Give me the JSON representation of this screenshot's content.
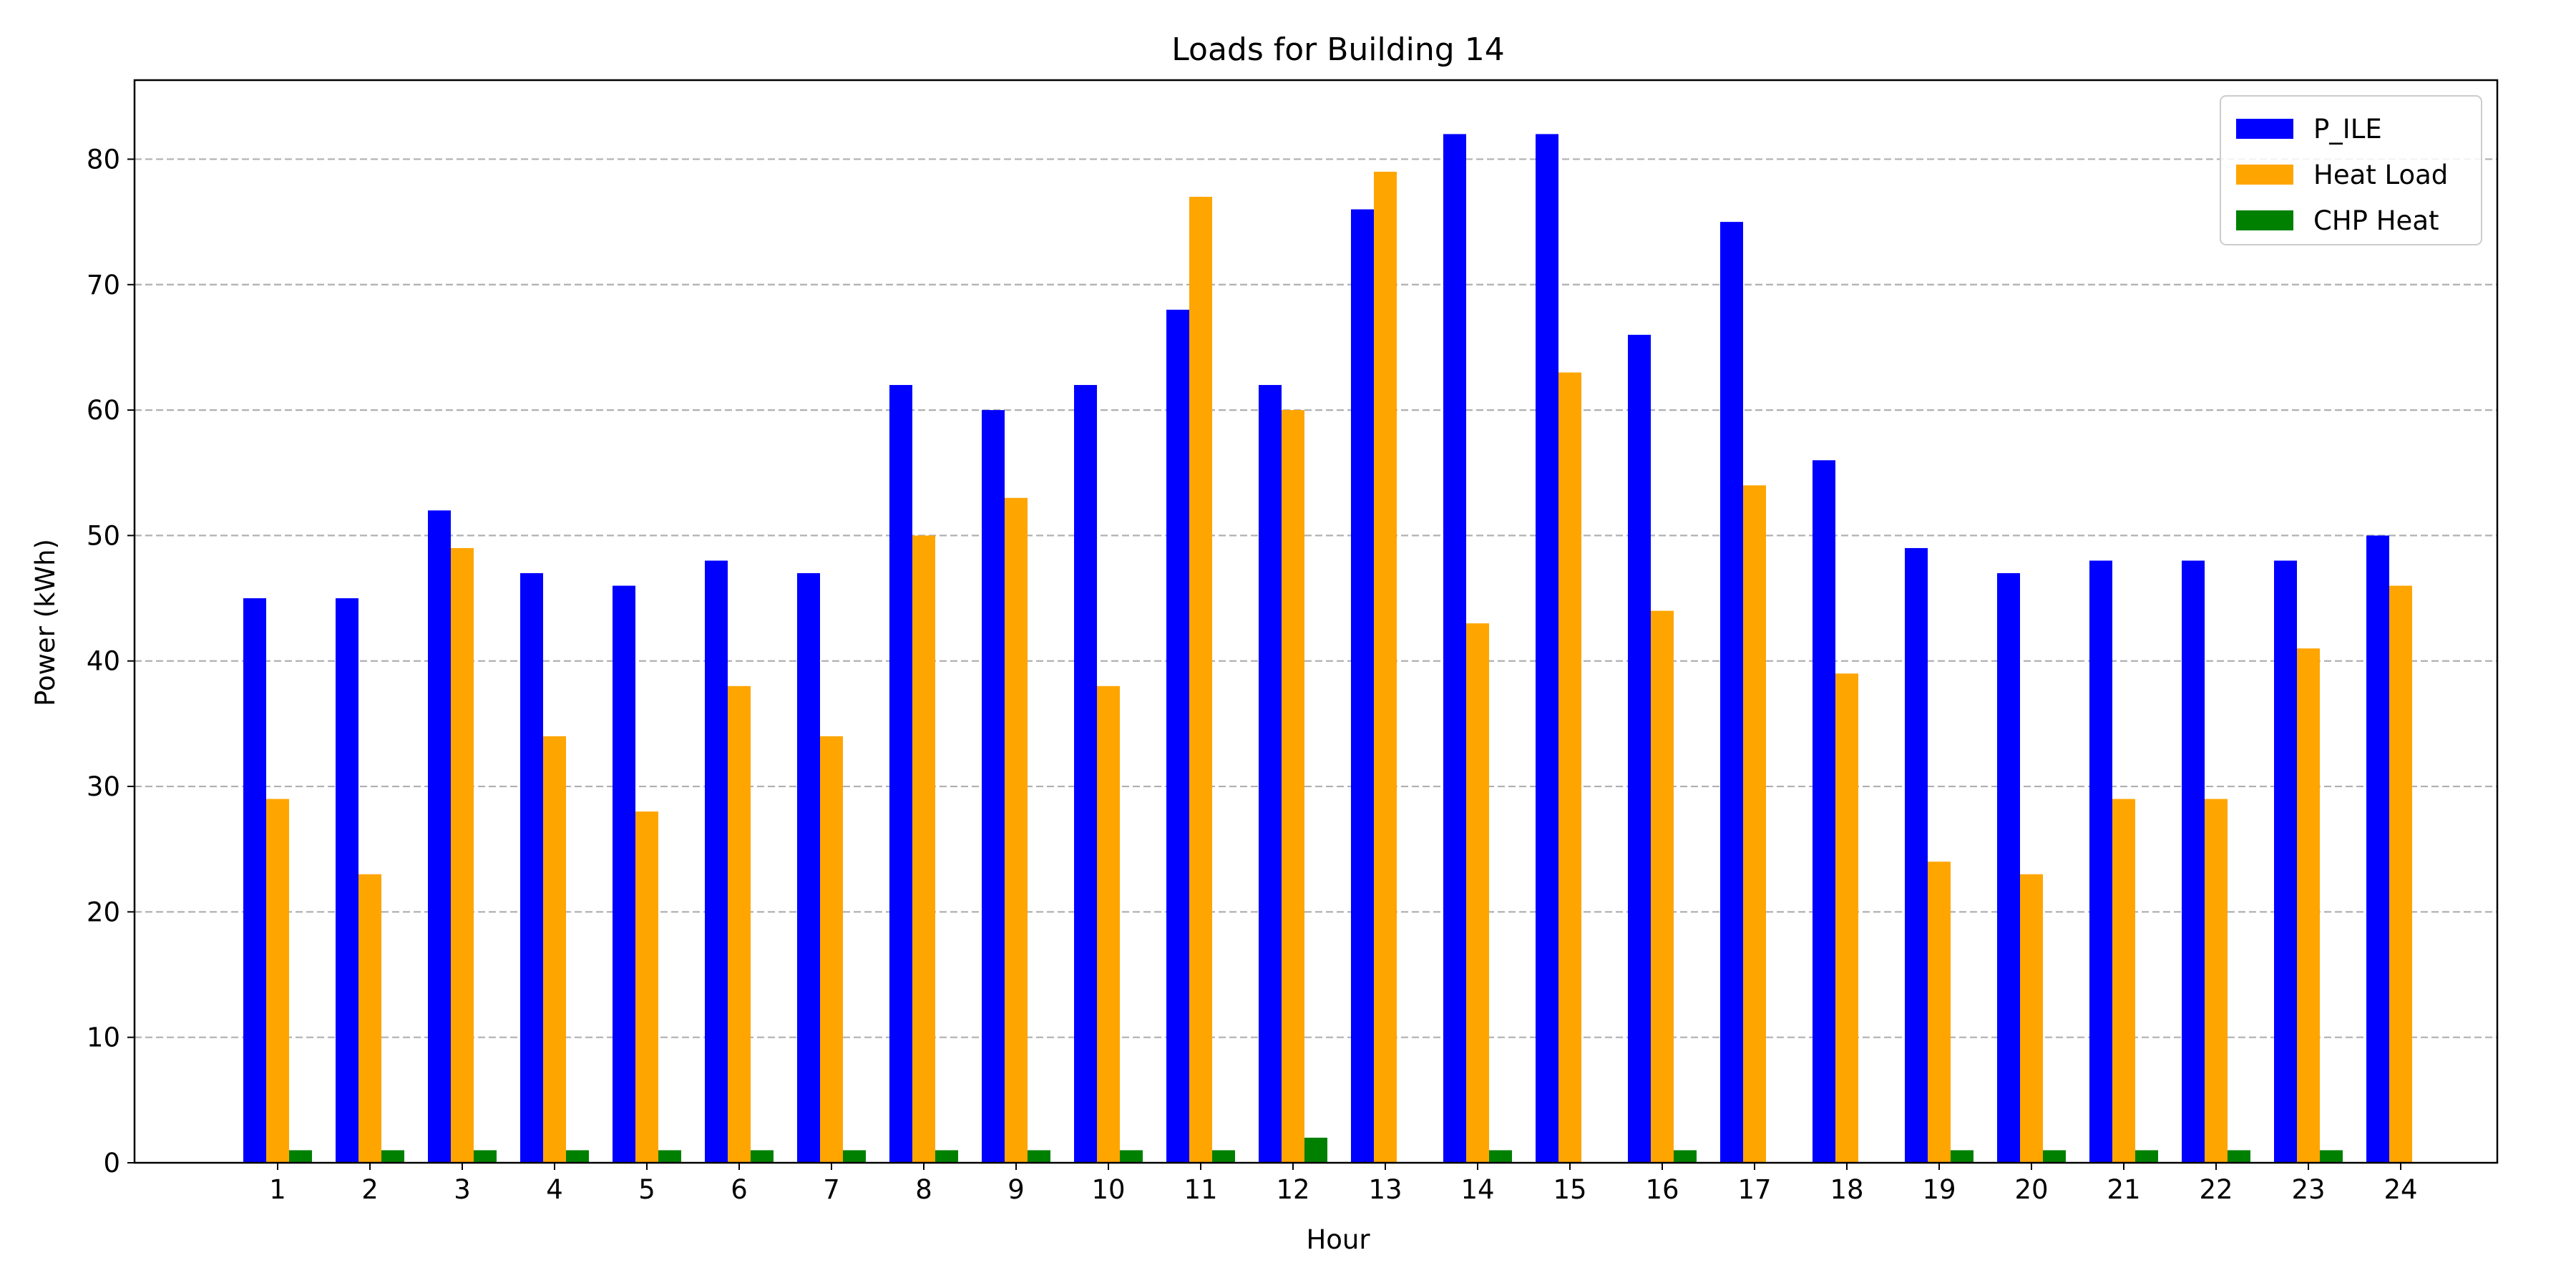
{
  "chart_data": {
    "type": "bar",
    "title": "Loads for Building 14",
    "xlabel": "Hour",
    "ylabel": "Power (kWh)",
    "categories": [
      "1",
      "2",
      "3",
      "4",
      "5",
      "6",
      "7",
      "8",
      "9",
      "10",
      "11",
      "12",
      "13",
      "14",
      "15",
      "16",
      "17",
      "18",
      "19",
      "20",
      "21",
      "22",
      "23",
      "24"
    ],
    "ylim": [
      0,
      86.3
    ],
    "yticks": [
      0,
      10,
      20,
      30,
      40,
      50,
      60,
      70,
      80
    ],
    "grid": "y-dashed",
    "legend_position": "top-right",
    "series": [
      {
        "name": "P_ILE",
        "color": "#0000ff",
        "values": [
          45,
          45,
          52,
          47,
          46,
          48,
          47,
          62,
          60,
          62,
          68,
          62,
          76,
          82,
          82,
          66,
          75,
          56,
          49,
          47,
          48,
          48,
          48,
          50
        ]
      },
      {
        "name": "Heat Load",
        "color": "#ffa500",
        "values": [
          29,
          23,
          49,
          34,
          28,
          38,
          34,
          50,
          53,
          38,
          77,
          60,
          79,
          43,
          63,
          44,
          54,
          39,
          24,
          23,
          29,
          29,
          41,
          46
        ]
      },
      {
        "name": "CHP Heat",
        "color": "#008000",
        "values": [
          1,
          1,
          1,
          1,
          1,
          1,
          1,
          1,
          1,
          1,
          1,
          2,
          0,
          1,
          0,
          1,
          0,
          0,
          1,
          1,
          1,
          1,
          1,
          0
        ]
      }
    ]
  }
}
